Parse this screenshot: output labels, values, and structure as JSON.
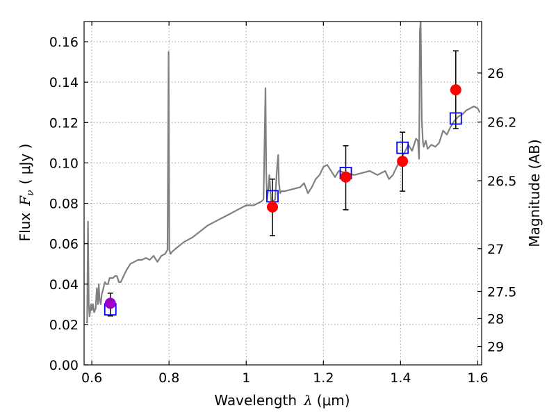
{
  "chart_data": {
    "type": "scatter",
    "xlabel_main": "Wavelength",
    "xlabel_symbol": "λ",
    "xlabel_unit": "(μm)",
    "ylabel_main": "Flux",
    "ylabel_symbol": "F",
    "ylabel_subscript": "ν",
    "ylabel_unit": "( μJy )",
    "y2label": "Magnitude (AB)",
    "xlim": [
      0.58,
      1.61
    ],
    "ylim": [
      0.0,
      0.17
    ],
    "grid": true,
    "grid_style": "dotted",
    "xticks": [
      {
        "value": 0.6,
        "label": "0.6"
      },
      {
        "value": 0.8,
        "label": "0.8"
      },
      {
        "value": 1.0,
        "label": "1"
      },
      {
        "value": 1.2,
        "label": "1.2"
      },
      {
        "value": 1.4,
        "label": "1.4"
      },
      {
        "value": 1.6,
        "label": "1.6"
      }
    ],
    "yticks": [
      {
        "value": 0.0,
        "label": "0.00"
      },
      {
        "value": 0.02,
        "label": "0.02"
      },
      {
        "value": 0.04,
        "label": "0.04"
      },
      {
        "value": 0.06,
        "label": "0.06"
      },
      {
        "value": 0.08,
        "label": "0.08"
      },
      {
        "value": 0.1,
        "label": "0.10"
      },
      {
        "value": 0.12,
        "label": "0.12"
      },
      {
        "value": 0.14,
        "label": "0.14"
      },
      {
        "value": 0.16,
        "label": "0.16"
      }
    ],
    "mag_ticks": [
      {
        "mag": 26,
        "label": "26"
      },
      {
        "mag": 26.2,
        "label": "26.2"
      },
      {
        "mag": 26.5,
        "label": "26.5"
      },
      {
        "mag": 27,
        "label": "27"
      },
      {
        "mag": 27.5,
        "label": "27.5"
      },
      {
        "mag": 28,
        "label": "28"
      },
      {
        "mag": 29,
        "label": "29"
      }
    ],
    "colors": {
      "spectrum": "#808080",
      "observed": "#ff0000",
      "observed_first": "#a000c8",
      "model": "#0000ff",
      "errorbar": "#000000",
      "grid": "#9a9a9a"
    },
    "spectrum": {
      "x": [
        0.585,
        0.588,
        0.59,
        0.592,
        0.594,
        0.596,
        0.598,
        0.6,
        0.603,
        0.606,
        0.61,
        0.613,
        0.616,
        0.618,
        0.62,
        0.623,
        0.626,
        0.63,
        0.634,
        0.638,
        0.642,
        0.646,
        0.65,
        0.655,
        0.66,
        0.665,
        0.67,
        0.675,
        0.68,
        0.69,
        0.7,
        0.71,
        0.72,
        0.73,
        0.74,
        0.75,
        0.76,
        0.77,
        0.78,
        0.79,
        0.796,
        0.799,
        0.801,
        0.804,
        0.808,
        0.82,
        0.84,
        0.86,
        0.88,
        0.9,
        0.92,
        0.94,
        0.96,
        0.98,
        1.0,
        1.01,
        1.02,
        1.03,
        1.04,
        1.045,
        1.05,
        1.052,
        1.054,
        1.056,
        1.058,
        1.06,
        1.065,
        1.07,
        1.075,
        1.08,
        1.083,
        1.085,
        1.088,
        1.091,
        1.1,
        1.12,
        1.14,
        1.15,
        1.16,
        1.17,
        1.18,
        1.19,
        1.2,
        1.21,
        1.22,
        1.23,
        1.24,
        1.26,
        1.28,
        1.3,
        1.32,
        1.34,
        1.36,
        1.37,
        1.38,
        1.39,
        1.4,
        1.41,
        1.42,
        1.43,
        1.44,
        1.445,
        1.448,
        1.45,
        1.452,
        1.455,
        1.458,
        1.46,
        1.465,
        1.47,
        1.48,
        1.49,
        1.5,
        1.51,
        1.52,
        1.53,
        1.54,
        1.55,
        1.56,
        1.57,
        1.58,
        1.59,
        1.6,
        1.605
      ],
      "y": [
        0.021,
        0.021,
        0.071,
        0.03,
        0.024,
        0.027,
        0.03,
        0.027,
        0.03,
        0.026,
        0.028,
        0.038,
        0.03,
        0.04,
        0.033,
        0.03,
        0.035,
        0.038,
        0.041,
        0.04,
        0.04,
        0.043,
        0.043,
        0.043,
        0.044,
        0.044,
        0.041,
        0.041,
        0.043,
        0.047,
        0.05,
        0.051,
        0.052,
        0.052,
        0.053,
        0.052,
        0.054,
        0.051,
        0.054,
        0.055,
        0.057,
        0.155,
        0.057,
        0.055,
        0.056,
        0.058,
        0.061,
        0.063,
        0.066,
        0.069,
        0.071,
        0.073,
        0.075,
        0.077,
        0.079,
        0.079,
        0.079,
        0.08,
        0.081,
        0.082,
        0.137,
        0.095,
        0.082,
        0.085,
        0.088,
        0.094,
        0.08,
        0.081,
        0.082,
        0.098,
        0.104,
        0.09,
        0.085,
        0.086,
        0.086,
        0.087,
        0.088,
        0.09,
        0.085,
        0.088,
        0.092,
        0.094,
        0.098,
        0.099,
        0.096,
        0.093,
        0.096,
        0.095,
        0.094,
        0.095,
        0.096,
        0.094,
        0.096,
        0.092,
        0.094,
        0.098,
        0.102,
        0.105,
        0.109,
        0.106,
        0.112,
        0.111,
        0.102,
        0.165,
        0.17,
        0.121,
        0.11,
        0.108,
        0.111,
        0.107,
        0.109,
        0.108,
        0.11,
        0.116,
        0.114,
        0.118,
        0.121,
        0.123,
        0.124,
        0.126,
        0.127,
        0.128,
        0.127,
        0.125
      ]
    },
    "observed": [
      {
        "x": 0.648,
        "y": 0.0305,
        "err_low": 0.0242,
        "err_high": 0.0355
      },
      {
        "x": 1.068,
        "y": 0.0782,
        "err_low": 0.064,
        "err_high": 0.092
      },
      {
        "x": 1.258,
        "y": 0.093,
        "err_low": 0.0768,
        "err_high": 0.1085
      },
      {
        "x": 1.405,
        "y": 0.1008,
        "err_low": 0.086,
        "err_high": 0.1152
      },
      {
        "x": 1.543,
        "y": 0.1362,
        "err_low": 0.117,
        "err_high": 0.1555
      }
    ],
    "model": [
      {
        "x": 0.648,
        "y": 0.0275
      },
      {
        "x": 1.068,
        "y": 0.0835
      },
      {
        "x": 1.258,
        "y": 0.095
      },
      {
        "x": 1.405,
        "y": 0.1075
      },
      {
        "x": 1.543,
        "y": 0.122
      }
    ]
  }
}
